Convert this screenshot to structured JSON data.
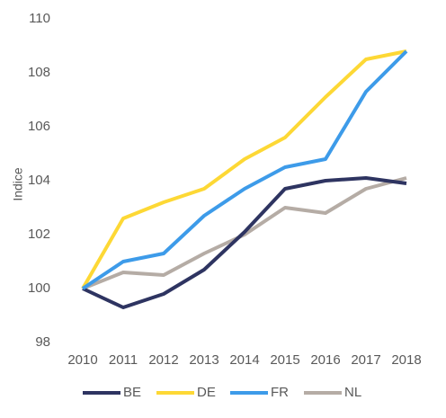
{
  "chart_data": {
    "type": "line",
    "title": "",
    "xlabel": "",
    "ylabel": "Indice",
    "x": [
      "2010",
      "2011",
      "2012",
      "2013",
      "2014",
      "2015",
      "2016",
      "2017",
      "2018"
    ],
    "ylim": [
      98,
      110
    ],
    "yticks": [
      98,
      100,
      102,
      104,
      106,
      108,
      110
    ],
    "grid": false,
    "legend": "bottom",
    "series": [
      {
        "name": "BE",
        "color": "#2e3461",
        "values": [
          100,
          99.3,
          99.8,
          100.7,
          102.1,
          103.7,
          104.0,
          104.1,
          103.9
        ]
      },
      {
        "name": "DE",
        "color": "#fdd835",
        "values": [
          100,
          102.6,
          103.2,
          103.7,
          104.8,
          105.6,
          107.1,
          108.5,
          108.8
        ]
      },
      {
        "name": "FR",
        "color": "#3d9be9",
        "values": [
          100,
          101.0,
          101.3,
          102.7,
          103.7,
          104.5,
          104.8,
          107.3,
          108.8
        ]
      },
      {
        "name": "NL",
        "color": "#b5aca5",
        "values": [
          100,
          100.6,
          100.5,
          101.3,
          102.0,
          103.0,
          102.8,
          103.7,
          104.1
        ]
      }
    ]
  }
}
